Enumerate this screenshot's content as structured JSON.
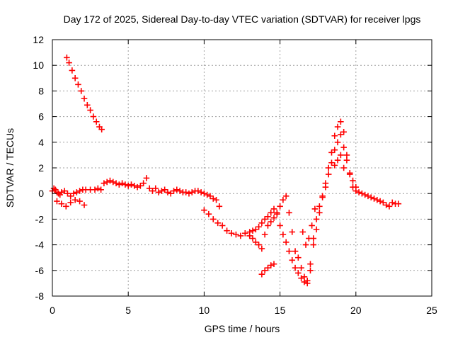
{
  "chart_data": {
    "type": "scatter",
    "title": "Day 172 of 2025, Sidereal Day-to-day VTEC variation (SDTVAR) for receiver lpgs",
    "xlabel": "GPS time / hours",
    "ylabel": "SDTVAR / TECUs",
    "xlim": [
      0,
      25
    ],
    "ylim": [
      -8,
      12
    ],
    "xticks": [
      0,
      5,
      10,
      15,
      20,
      25
    ],
    "yticks": [
      -8,
      -6,
      -4,
      -2,
      0,
      2,
      4,
      6,
      8,
      10,
      12
    ],
    "grid": true,
    "marker": "+",
    "color": "#ff0000",
    "series": [
      {
        "name": "SDTVAR",
        "x": [
          0.0,
          0.1,
          0.2,
          0.3,
          0.4,
          0.5,
          0.6,
          0.8,
          1.0,
          1.2,
          1.4,
          1.6,
          1.8,
          2.0,
          2.2,
          2.5,
          2.8,
          3.0,
          3.2,
          3.4,
          3.6,
          3.8,
          4.0,
          4.2,
          4.4,
          4.6,
          4.8,
          5.0,
          5.2,
          5.4,
          5.6,
          5.8,
          6.0,
          6.2,
          6.4,
          6.6,
          6.8,
          7.0,
          7.2,
          7.4,
          7.6,
          7.8,
          8.0,
          8.2,
          8.4,
          8.6,
          8.8,
          9.0,
          9.2,
          9.4,
          9.6,
          9.8,
          10.0,
          10.2,
          10.4,
          10.6,
          10.8,
          11.0,
          0.3,
          0.6,
          0.9,
          1.2,
          1.5,
          1.8,
          2.1,
          0.95,
          1.1,
          1.3,
          1.5,
          1.7,
          1.9,
          2.1,
          2.3,
          2.5,
          2.7,
          2.9,
          3.1,
          3.25,
          10.0,
          10.3,
          10.6,
          10.9,
          11.2,
          11.5,
          11.8,
          12.1,
          12.4,
          12.7,
          13.0,
          13.2,
          13.4,
          13.6,
          13.8,
          14.0,
          14.2,
          14.4,
          14.6,
          14.8,
          15.0,
          15.2,
          15.4,
          15.6,
          15.8,
          16.0,
          16.2,
          16.4,
          16.6,
          16.8,
          17.0,
          17.2,
          17.4,
          17.6,
          17.8,
          18.0,
          18.2,
          18.4,
          18.6,
          18.8,
          19.0,
          19.2,
          19.4,
          19.6,
          19.8,
          20.0,
          20.2,
          20.4,
          20.6,
          20.8,
          21.0,
          21.2,
          21.4,
          21.6,
          21.8,
          22.0,
          22.2,
          22.4,
          22.6,
          22.8,
          13.0,
          13.2,
          13.4,
          13.6,
          13.8,
          14.0,
          14.2,
          14.4,
          14.6,
          14.8,
          15.0,
          15.2,
          15.4,
          15.6,
          15.8,
          16.0,
          16.2,
          16.4,
          16.6,
          16.8,
          17.0,
          17.2,
          17.4,
          17.6,
          17.8,
          18.0,
          18.2,
          18.4,
          18.6,
          18.8,
          19.0,
          19.2,
          19.4,
          19.6,
          19.8,
          20.0,
          13.8,
          14.0,
          14.2,
          14.4,
          14.6,
          16.5,
          16.7,
          16.9,
          17.1,
          17.3,
          18.6,
          18.8,
          19.0,
          19.2
        ],
        "y": [
          0.2,
          0.4,
          0.3,
          0.1,
          0.0,
          -0.1,
          0.1,
          0.2,
          0.0,
          -0.2,
          0.0,
          0.1,
          0.2,
          0.3,
          0.3,
          0.3,
          0.3,
          0.4,
          0.3,
          0.8,
          0.9,
          1.0,
          0.9,
          0.8,
          0.7,
          0.8,
          0.7,
          0.6,
          0.7,
          0.6,
          0.5,
          0.6,
          0.8,
          1.2,
          0.4,
          0.2,
          0.4,
          0.1,
          0.2,
          0.3,
          0.1,
          0.0,
          0.2,
          0.3,
          0.2,
          0.1,
          0.1,
          0.0,
          0.1,
          0.2,
          0.2,
          0.1,
          0.0,
          -0.1,
          -0.2,
          -0.4,
          -0.5,
          -1.0,
          -0.6,
          -0.8,
          -1.0,
          -0.7,
          -0.5,
          -0.6,
          -0.9,
          10.6,
          10.2,
          9.6,
          9.0,
          8.5,
          8.0,
          7.4,
          6.9,
          6.5,
          6.0,
          5.6,
          5.2,
          5.0,
          -1.3,
          -1.6,
          -2.0,
          -2.3,
          -2.5,
          -2.9,
          -3.1,
          -3.2,
          -3.3,
          -3.1,
          -3.0,
          -2.9,
          -2.8,
          -2.6,
          -2.3,
          -2.0,
          -1.8,
          -1.5,
          -1.2,
          -1.6,
          -2.5,
          -3.2,
          -3.8,
          -4.5,
          -5.2,
          -5.8,
          -6.2,
          -6.6,
          -6.9,
          -7.0,
          -5.5,
          -4.0,
          -2.8,
          -1.5,
          -0.3,
          0.8,
          2.0,
          3.2,
          4.5,
          5.2,
          5.6,
          4.8,
          3.0,
          1.5,
          0.5,
          0.2,
          0.1,
          0.0,
          -0.1,
          -0.2,
          -0.3,
          -0.4,
          -0.5,
          -0.6,
          -0.7,
          -0.9,
          -1.0,
          -0.7,
          -0.8,
          -0.8,
          -3.3,
          -3.5,
          -3.8,
          -4.0,
          -4.3,
          -3.2,
          -2.5,
          -2.2,
          -1.9,
          -1.5,
          -1.0,
          -0.5,
          -0.2,
          -1.5,
          -3.0,
          -4.5,
          -5.0,
          -5.8,
          -6.5,
          -6.8,
          -6.0,
          -3.5,
          -2.0,
          -1.0,
          -0.2,
          0.5,
          1.5,
          2.4,
          3.4,
          4.0,
          4.6,
          3.6,
          2.6,
          1.6,
          1.0,
          0.5,
          -6.3,
          -6.0,
          -5.8,
          -5.6,
          -5.5,
          -3.0,
          -4.0,
          -3.5,
          -2.5,
          -1.2,
          2.2,
          2.6,
          3.0,
          2.0
        ]
      }
    ]
  }
}
